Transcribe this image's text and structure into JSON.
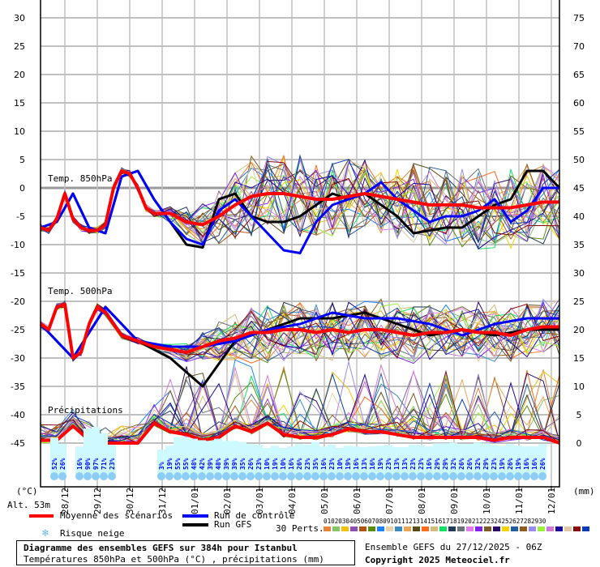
{
  "chart_data": {
    "type": "line",
    "title": "Diagramme des ensembles GEFS sur 384h pour Istanbul",
    "subtitle": "Températures 850hPa et 500hPa (°C) , précipitations (mm)",
    "run_info": "Ensemble GEFS du 27/12/2025 - 06Z",
    "copyright": "Copyright 2025 Meteociel.fr",
    "altitude": "Alt. 53m",
    "left_axis": {
      "label": "(°C)",
      "ticks": [
        30,
        25,
        20,
        15,
        10,
        5,
        0,
        -5,
        -10,
        -15,
        -20,
        -25,
        -30,
        -35,
        -40,
        -45
      ],
      "range": [
        -45,
        30
      ]
    },
    "right_axis": {
      "label": "(mm)",
      "ticks": [
        75,
        70,
        65,
        60,
        55,
        50,
        45,
        40,
        35,
        30,
        25,
        20,
        15,
        10,
        5,
        0
      ],
      "range": [
        0,
        75
      ]
    },
    "x_ticks": [
      "28/12",
      "29/12",
      "30/12",
      "31/12",
      "01/01",
      "02/01",
      "03/01",
      "04/01",
      "05/01",
      "06/01",
      "07/01",
      "08/01",
      "09/01",
      "10/01",
      "11/01",
      "12/01"
    ],
    "panels": [
      {
        "label": "Temp. 850hPa",
        "unit": "°C",
        "series": [
          {
            "name": "Moyenne des scénarios",
            "color": "#ff0000",
            "x": [
              0,
              0.25,
              0.5,
              0.75,
              1,
              1.25,
              1.5,
              1.75,
              2,
              2.25,
              2.5,
              2.75,
              3,
              3.25,
              3.5,
              4,
              4.5,
              5,
              5.5,
              6,
              6.5,
              7,
              7.5,
              8,
              8.5,
              9,
              9.5,
              10,
              10.5,
              11,
              11.5,
              12,
              12.5,
              13,
              13.5,
              14,
              14.5,
              15,
              15.5,
              16
            ],
            "values": [
              -7,
              -7.5,
              -5.5,
              -1,
              -5.5,
              -7,
              -7.5,
              -7.5,
              -6.5,
              0,
              3,
              2.5,
              0,
              -3.5,
              -4.5,
              -4.5,
              -6,
              -6.5,
              -5,
              -3,
              -1.5,
              -1,
              -1,
              -1.5,
              -2,
              -2,
              -1.5,
              -1,
              -1.5,
              -2,
              -2.5,
              -3,
              -3,
              -3,
              -3.5,
              -3.5,
              -3.5,
              -3,
              -2.5,
              -2.5
            ]
          },
          {
            "name": "Run de contrôle",
            "color": "#0000ff",
            "x": [
              0,
              0.5,
              1,
              1.5,
              2,
              2.5,
              3,
              3.5,
              4,
              4.5,
              5,
              5.5,
              6,
              6.5,
              7,
              7.5,
              8,
              8.5,
              9,
              9.5,
              10,
              10.5,
              11,
              11.5,
              12,
              12.5,
              13,
              13.5,
              14,
              14.5,
              15,
              15.5,
              16
            ],
            "values": [
              -7,
              -6,
              -1,
              -7,
              -8,
              2,
              3,
              -2,
              -6,
              -9,
              -10,
              -4,
              -2,
              -5,
              -8,
              -11,
              -11.5,
              -6,
              -3,
              -2,
              -1,
              1,
              -2,
              -4,
              -6,
              -5,
              -5,
              -4,
              -2,
              -6,
              -4,
              0,
              0
            ]
          },
          {
            "name": "Run GFS",
            "color": "#000000",
            "x": [
              0,
              0.5,
              1,
              1.5,
              2,
              2.5,
              3,
              3.5,
              4,
              4.5,
              5,
              5.5,
              6,
              6.5,
              7,
              7.5,
              8,
              8.5,
              9,
              9.5,
              10,
              10.5,
              11,
              11.5,
              12,
              12.5,
              13,
              13.5,
              14,
              14.5,
              15,
              15.5,
              16
            ],
            "values": [
              -7,
              -6,
              -1,
              -7,
              -8,
              2,
              3,
              -2,
              -6,
              -10,
              -10.5,
              -2,
              -1,
              -5,
              -6,
              -6,
              -5,
              -3,
              -1,
              -2,
              -1,
              -3,
              -5,
              -8,
              -7.5,
              -7,
              -7,
              -5,
              -3,
              -2,
              3,
              3,
              0
            ]
          }
        ],
        "ensemble_spread": {
          "min": -13,
          "max": 12
        }
      },
      {
        "label": "Temp. 500hPa",
        "unit": "°C",
        "series": [
          {
            "name": "Moyenne des scénarios",
            "color": "#ff0000",
            "x": [
              0,
              0.25,
              0.5,
              0.75,
              1,
              1.25,
              1.5,
              1.75,
              2,
              2.5,
              3,
              3.5,
              4,
              4.5,
              5,
              5.5,
              6,
              6.5,
              7,
              7.5,
              8,
              8.5,
              9,
              9.5,
              10,
              10.5,
              11,
              11.5,
              12,
              12.5,
              13,
              13.5,
              14,
              14.5,
              15,
              15.5,
              16
            ],
            "values": [
              -24,
              -25,
              -21,
              -20.5,
              -30,
              -29,
              -24,
              -21,
              -22,
              -26,
              -27,
              -28,
              -28.5,
              -29,
              -28,
              -27,
              -26.5,
              -25.5,
              -25.5,
              -25,
              -25,
              -25.5,
              -25,
              -25.5,
              -25,
              -25,
              -25.5,
              -26,
              -25.5,
              -25.5,
              -25,
              -25.5,
              -25.5,
              -26,
              -25,
              -24.5,
              -24.5
            ]
          },
          {
            "name": "Run de contrôle",
            "color": "#0000ff",
            "x": [
              0,
              1,
              2,
              3,
              4,
              5,
              6,
              7,
              8,
              9,
              10,
              11,
              12,
              13,
              14,
              15,
              16
            ],
            "values": [
              -24,
              -30,
              -21,
              -27,
              -28,
              -28,
              -27,
              -25,
              -24,
              -22,
              -23,
              -23,
              -24,
              -26,
              -24,
              -23,
              -23
            ]
          },
          {
            "name": "Run GFS",
            "color": "#000000",
            "x": [
              0,
              1,
              2,
              3,
              4,
              5,
              6,
              7,
              8,
              9,
              10,
              11,
              12,
              13,
              14,
              15,
              16
            ],
            "values": [
              -24,
              -30,
              -21,
              -27,
              -30,
              -35,
              -27,
              -25,
              -23,
              -23,
              -22,
              -24,
              -26,
              -25,
              -26,
              -25,
              -25
            ]
          }
        ],
        "ensemble_spread": {
          "min": -36,
          "max": -17
        }
      },
      {
        "label": "Précipitations",
        "unit": "mm",
        "series": [
          {
            "name": "Moyenne des scénarios",
            "color": "#ff0000",
            "x": [
              0,
              0.5,
              1,
              1.5,
              2,
              2.5,
              3,
              3.5,
              4,
              4.5,
              5,
              5.5,
              6,
              6.5,
              7,
              7.5,
              8,
              8.5,
              9,
              9.5,
              10,
              10.5,
              11,
              11.5,
              12,
              12.5,
              13,
              13.5,
              14,
              14.5,
              15,
              15.5,
              16
            ],
            "values": [
              0.5,
              0.5,
              3,
              0.5,
              0,
              0,
              0,
              3.5,
              2,
              1.5,
              0.5,
              1,
              3,
              2,
              3.5,
              1.5,
              1,
              1,
              1.5,
              2.5,
              2,
              2,
              1.5,
              1,
              1,
              1,
              1,
              1,
              0.5,
              1,
              1,
              1,
              0
            ]
          }
        ],
        "ensemble_spread": {
          "min": 0,
          "max": 17
        }
      }
    ],
    "snow_risk_pct": {
      "group1": [
        "52%",
        "26%"
      ],
      "group2": [
        "16%",
        "90%",
        "97%",
        "71%",
        "23%"
      ],
      "group3": [
        "3%",
        "19%",
        "55%",
        "55%",
        "48%",
        "42%",
        "39%",
        "48%",
        "39%",
        "39%",
        "35%",
        "26%",
        "23%",
        "10%",
        "19%",
        "10%",
        "16%",
        "26%",
        "23%",
        "35%",
        "16%",
        "23%",
        "10%",
        "19%",
        "16%",
        "13%",
        "16%",
        "19%",
        "23%",
        "13%",
        "13%",
        "23%",
        "23%",
        "16%",
        "29%",
        "29%",
        "32%",
        "26%",
        "26%",
        "32%",
        "29%",
        "23%",
        "19%",
        "26%",
        "19%",
        "16%",
        "16%",
        "26%"
      ]
    },
    "grid": true,
    "legend_position": "bottom"
  },
  "labels": {
    "panel_850": "Temp. 850hPa",
    "panel_500": "Temp. 500hPa",
    "panel_precip": "Précipitations",
    "unit_left": "(°C)",
    "unit_right": "(mm)",
    "altitude": "Alt. 53m"
  },
  "legend": {
    "mean": {
      "label": "Moyenne des scénarios",
      "color": "#ff0000"
    },
    "control": {
      "label": "Run de contrôle",
      "color": "#0000ff"
    },
    "gfs": {
      "label": "Run GFS",
      "color": "#000000"
    },
    "snow": {
      "label": "Risque neige",
      "icon": "snowflake-icon"
    },
    "perts_label": "30 Perts.",
    "perts": [
      {
        "n": "01",
        "c": "#e6823a"
      },
      {
        "n": "02",
        "c": "#86c46a"
      },
      {
        "n": "03",
        "c": "#f2c10a"
      },
      {
        "n": "04",
        "c": "#8e4fae"
      },
      {
        "n": "05",
        "c": "#b25410"
      },
      {
        "n": "06",
        "c": "#5a8c0c"
      },
      {
        "n": "07",
        "c": "#1a82ff"
      },
      {
        "n": "08",
        "c": "#e8d2aa"
      },
      {
        "n": "09",
        "c": "#3a8cbe"
      },
      {
        "n": "10",
        "c": "#e8a654"
      },
      {
        "n": "11",
        "c": "#5c4a1a"
      },
      {
        "n": "12",
        "c": "#fc6a1e"
      },
      {
        "n": "13",
        "c": "#d2be7a"
      },
      {
        "n": "14",
        "c": "#10e064"
      },
      {
        "n": "15",
        "c": "#243c5a"
      },
      {
        "n": "16",
        "c": "#6a7478"
      },
      {
        "n": "17",
        "c": "#e07cf0"
      },
      {
        "n": "18",
        "c": "#8222f0"
      },
      {
        "n": "19",
        "c": "#7a5c2a"
      },
      {
        "n": "20",
        "c": "#2a0a6a"
      },
      {
        "n": "21",
        "c": "#f2d400"
      },
      {
        "n": "22",
        "c": "#225e9e"
      },
      {
        "n": "23",
        "c": "#8e5c1e"
      },
      {
        "n": "24",
        "c": "#9a8af0"
      },
      {
        "n": "25",
        "c": "#9af23a"
      },
      {
        "n": "26",
        "c": "#d278d2"
      },
      {
        "n": "27",
        "c": "#1e06a0"
      },
      {
        "n": "28",
        "c": "#dec8a8"
      },
      {
        "n": "29",
        "c": "#880a0a"
      },
      {
        "n": "30",
        "c": "#0a3ab8"
      }
    ]
  },
  "footer": {
    "title": "Diagramme des ensembles GEFS sur 384h pour Istanbul",
    "subtitle": "Températures 850hPa et 500hPa (°C) , précipitations (mm)",
    "run_info": "Ensemble GEFS du 27/12/2025 - 06Z",
    "copyright": "Copyright 2025 Meteociel.fr"
  }
}
